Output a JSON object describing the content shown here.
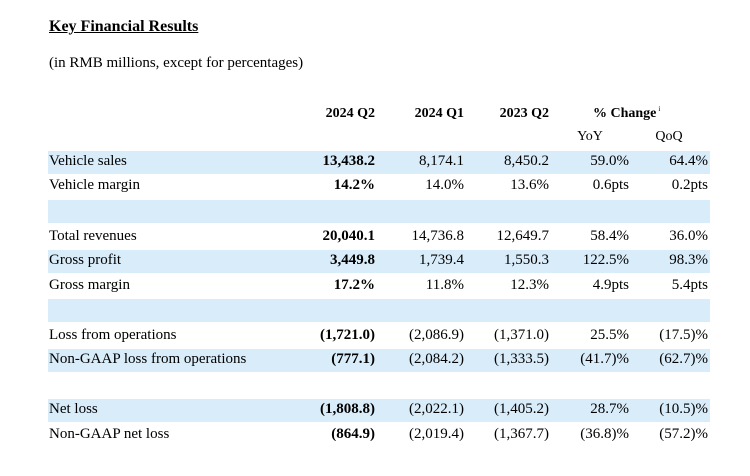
{
  "title": "Key Financial Results",
  "subtitle": "(in RMB millions, except for percentages)",
  "columns": {
    "q2_2024": "2024 Q2",
    "q1_2024": "2024 Q1",
    "q2_2023": "2023 Q2",
    "pct_change": "% Change",
    "pct_note": "i",
    "yoy": "YoY",
    "qoq": "QoQ"
  },
  "rows": [
    {
      "label": "Vehicle sales",
      "q2_2024": "13,438.2",
      "q1_2024": "8,174.1",
      "q2_2023": "8,450.2",
      "yoy": "59.0%",
      "qoq": "64.4%"
    },
    {
      "label": "Vehicle margin",
      "q2_2024": "14.2%",
      "q1_2024": "14.0%",
      "q2_2023": "13.6%",
      "yoy": "0.6pts",
      "qoq": "0.2pts"
    },
    {
      "label": "Total revenues",
      "q2_2024": "20,040.1",
      "q1_2024": "14,736.8",
      "q2_2023": "12,649.7",
      "yoy": "58.4%",
      "qoq": "36.0%"
    },
    {
      "label": "Gross profit",
      "q2_2024": "3,449.8",
      "q1_2024": "1,739.4",
      "q2_2023": "1,550.3",
      "yoy": "122.5%",
      "qoq": "98.3%"
    },
    {
      "label": "Gross margin",
      "q2_2024": "17.2%",
      "q1_2024": "11.8%",
      "q2_2023": "12.3%",
      "yoy": "4.9pts",
      "qoq": "5.4pts"
    },
    {
      "label": "Loss from operations",
      "q2_2024": "(1,721.0)",
      "q1_2024": "(2,086.9)",
      "q2_2023": "(1,371.0)",
      "yoy": "25.5%",
      "qoq": "(17.5)%"
    },
    {
      "label": "Non-GAAP loss from operations",
      "q2_2024": "(777.1)",
      "q1_2024": "(2,084.2)",
      "q2_2023": "(1,333.5)",
      "yoy": "(41.7)%",
      "qoq": "(62.7)%"
    },
    {
      "label": "Net loss",
      "q2_2024": "(1,808.8)",
      "q1_2024": "(2,022.1)",
      "q2_2023": "(1,405.2)",
      "yoy": "28.7%",
      "qoq": "(10.5)%"
    },
    {
      "label": "Non-GAAP net loss",
      "q2_2024": "(864.9)",
      "q1_2024": "(2,019.4)",
      "q2_2023": "(1,367.7)",
      "yoy": "(36.8)%",
      "qoq": "(57.2)%"
    }
  ],
  "colors": {
    "row_shade": "#d9ecf9"
  }
}
